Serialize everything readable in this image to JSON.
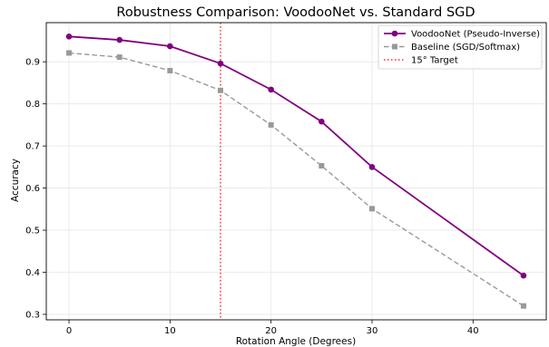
{
  "chart_data": {
    "type": "line",
    "title": "Robustness Comparison: VoodooNet vs. Standard SGD",
    "xlabel": "Rotation Angle (Degrees)",
    "ylabel": "Accuracy",
    "xlim": [
      -2.25,
      47.25
    ],
    "ylim": [
      0.287,
      0.993
    ],
    "xticks": [
      0,
      10,
      20,
      30,
      40
    ],
    "yticks": [
      0.3,
      0.4,
      0.5,
      0.6,
      0.7,
      0.8,
      0.9
    ],
    "grid": true,
    "legend_position": "top-right",
    "x": [
      0,
      5,
      10,
      15,
      20,
      25,
      30,
      45
    ],
    "series": [
      {
        "name": "VoodooNet (Pseudo-Inverse)",
        "values": [
          0.96,
          0.952,
          0.937,
          0.896,
          0.834,
          0.758,
          0.65,
          0.392
        ],
        "color": "#800080",
        "line_style": "solid",
        "marker": "circle"
      },
      {
        "name": "Baseline (SGD/Softmax)",
        "values": [
          0.921,
          0.911,
          0.879,
          0.832,
          0.75,
          0.653,
          0.551,
          0.32
        ],
        "color": "#999999",
        "line_style": "dashed",
        "marker": "square"
      }
    ],
    "reference_lines": [
      {
        "name": "15° Target",
        "orientation": "vertical",
        "x": 15,
        "color": "#ff0000",
        "line_style": "dotted"
      }
    ]
  }
}
